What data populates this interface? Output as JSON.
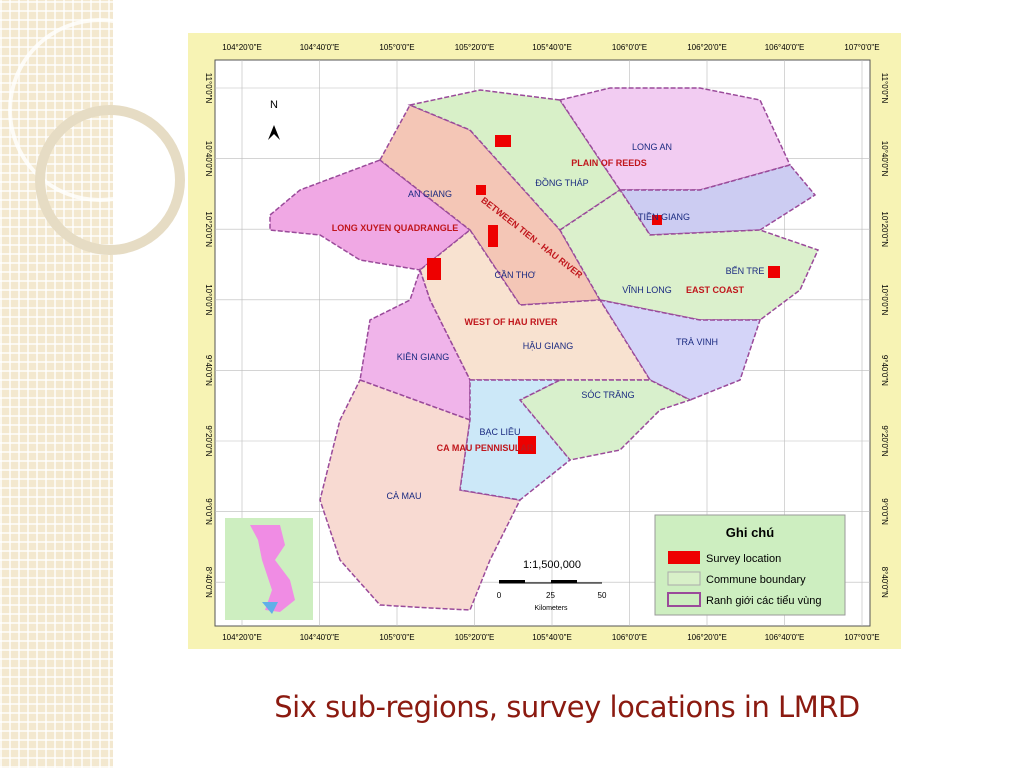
{
  "map": {
    "longitude_labels": [
      "104°20'0\"E",
      "104°40'0\"E",
      "105°0'0\"E",
      "105°20'0\"E",
      "105°40'0\"E",
      "106°0'0\"E",
      "106°20'0\"E",
      "106°40'0\"E",
      "107°0'0\"E"
    ],
    "latitude_labels": [
      "11°0'0\"N",
      "10°40'0\"N",
      "10°20'0\"N",
      "10°0'0\"N",
      "9°40'0\"N",
      "9°20'0\"N",
      "9°0'0\"N",
      "8°40'0\"N"
    ],
    "north": "N",
    "provinces": [
      "LONG AN",
      "ĐỒNG THÁP",
      "AN GIANG",
      "TIỀN GIANG",
      "CẦN THƠ",
      "BẾN TRE",
      "VĨNH LONG",
      "HẬU GIANG",
      "TRÀ VINH",
      "KIÊN GIANG",
      "SÓC TRĂNG",
      "BẠC LIÊU",
      "CÀ MAU"
    ],
    "sub_regions": [
      "PLAIN OF REEDS",
      "LONG XUYEN QUADRANGLE",
      "BETWEEN TIEN - HAU RIVER",
      "EAST COAST",
      "WEST OF HAU RIVER",
      "CA MAU PENNISULAR"
    ],
    "scale": {
      "ratio": "1:1,500,000",
      "ticks": [
        "0",
        "25",
        "50"
      ],
      "unit": "Kilometers"
    },
    "legend": {
      "title": "Ghi chú",
      "items": [
        "Survey location",
        "Commune boundary",
        "Ranh giới các tiểu vùng"
      ]
    }
  },
  "caption": "Six sub-regions, survey locations in LMRD"
}
